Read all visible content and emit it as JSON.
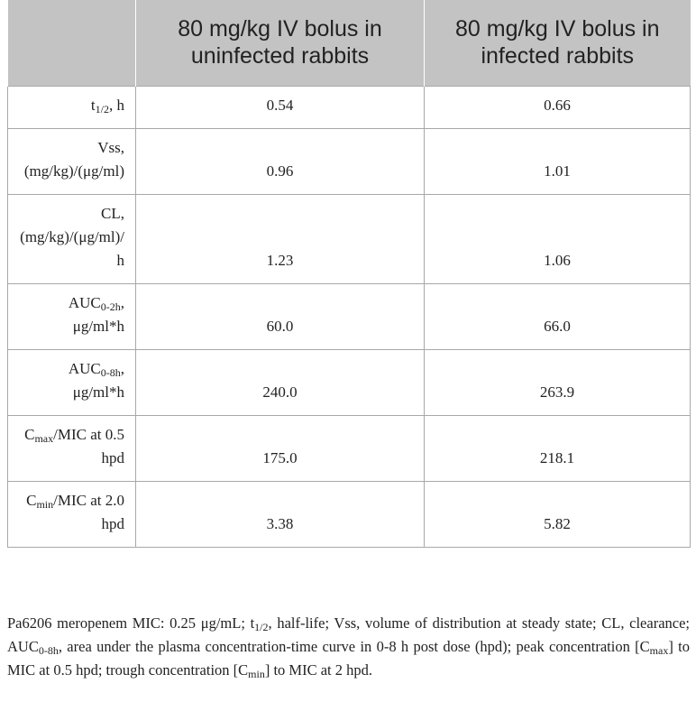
{
  "table": {
    "header": [
      "80 mg/kg IV bolus in uninfected rabbits",
      "80 mg/kg IV bolus in infected rabbits"
    ],
    "rows": [
      {
        "label": [
          {
            "text": "t"
          },
          {
            "sub": "1/2"
          },
          {
            "text": ", h"
          }
        ],
        "values": [
          "0.54",
          "0.66"
        ]
      },
      {
        "label": [
          {
            "text": "Vss, (mg/kg)/(μg/ml)"
          }
        ],
        "values": [
          "0.96",
          "1.01"
        ]
      },
      {
        "label": [
          {
            "text": "CL, (mg/kg)/(μg/ml)/h"
          }
        ],
        "values": [
          "1.23",
          "1.06"
        ]
      },
      {
        "label": [
          {
            "text": "AUC"
          },
          {
            "sub": "0-2h"
          },
          {
            "text": ", μg/ml*h"
          }
        ],
        "values": [
          "60.0",
          "66.0"
        ]
      },
      {
        "label": [
          {
            "text": "AUC"
          },
          {
            "sub": "0-8h"
          },
          {
            "text": ", μg/ml*h"
          }
        ],
        "values": [
          "240.0",
          "263.9"
        ]
      },
      {
        "label": [
          {
            "text": "C"
          },
          {
            "sub": "max"
          },
          {
            "text": "/MIC at 0.5 hpd"
          }
        ],
        "values": [
          "175.0",
          "218.1"
        ]
      },
      {
        "label": [
          {
            "text": "C"
          },
          {
            "sub": "min"
          },
          {
            "text": "/MIC at 2.0 hpd"
          }
        ],
        "values": [
          "3.38",
          "5.82"
        ]
      }
    ]
  },
  "footnote": [
    {
      "text": "Pa6206 meropenem MIC: 0.25 μg/mL; t"
    },
    {
      "sub": "1/2"
    },
    {
      "text": ", half-life; Vss, volume of distribution at steady state; CL, clearance; AUC"
    },
    {
      "sub": "0-8h"
    },
    {
      "text": ", area under the plasma concentration-time curve in 0-8 h post dose (hpd); peak concentration [C"
    },
    {
      "sub": "max"
    },
    {
      "text": "] to MIC at 0.5 hpd; trough concentration [C"
    },
    {
      "sub": "min"
    },
    {
      "text": "] to MIC at 2 hpd."
    }
  ]
}
